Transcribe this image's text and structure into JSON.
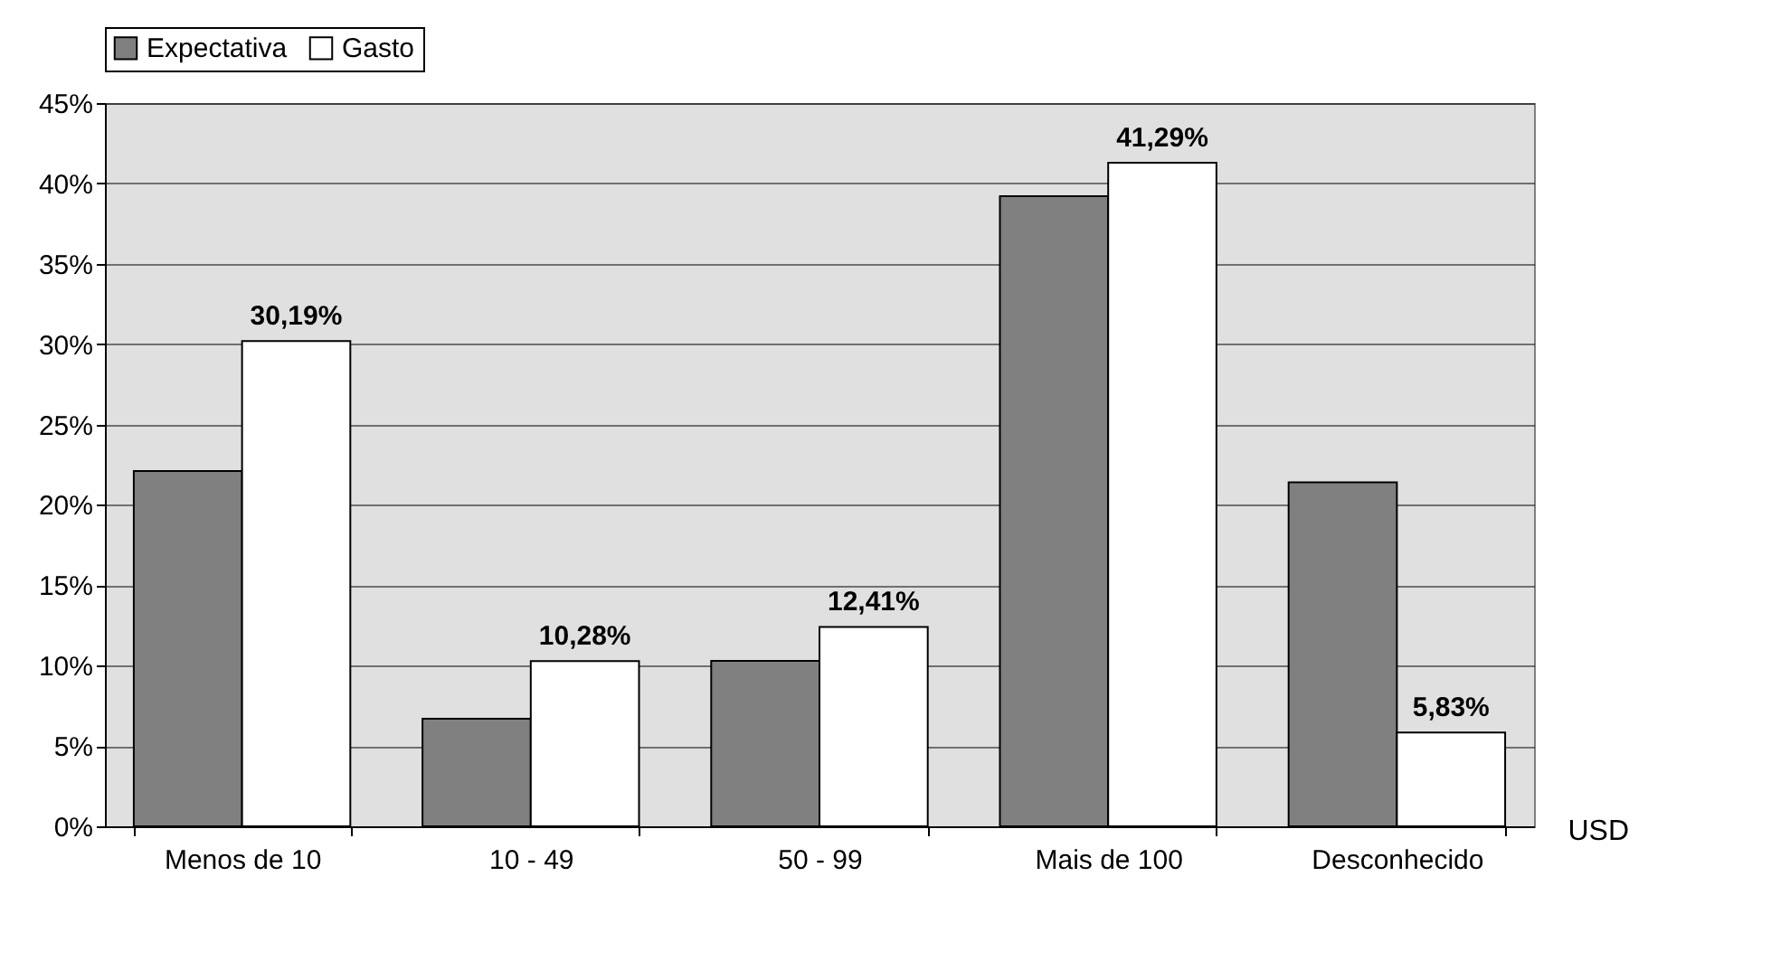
{
  "chart_data": {
    "type": "bar",
    "xlabel": "USD",
    "categories": [
      "Menos de 10",
      "10 - 49",
      "50 - 99",
      "Mais de 100",
      "Desconhecido"
    ],
    "series": [
      {
        "name": "Expectativa",
        "color": "#808080",
        "values": [
          22.1,
          6.7,
          10.3,
          39.2,
          21.4
        ]
      },
      {
        "name": "Gasto",
        "color": "#ffffff",
        "values": [
          30.19,
          10.28,
          12.41,
          41.29,
          5.83
        ],
        "value_labels": [
          "30,19%",
          "10,28%",
          "12,41%",
          "41,29%",
          "5,83%"
        ]
      }
    ],
    "ylim": [
      0,
      45
    ],
    "yticks": [
      {
        "value": 0,
        "label": "0%"
      },
      {
        "value": 5,
        "label": "5%"
      },
      {
        "value": 10,
        "label": "10%"
      },
      {
        "value": 15,
        "label": "15%"
      },
      {
        "value": 20,
        "label": "20%"
      },
      {
        "value": 25,
        "label": "25%"
      },
      {
        "value": 30,
        "label": "30%"
      },
      {
        "value": 35,
        "label": "35%"
      },
      {
        "value": 40,
        "label": "40%"
      },
      {
        "value": 45,
        "label": "45%"
      }
    ],
    "grid": "y",
    "legend": "top"
  }
}
